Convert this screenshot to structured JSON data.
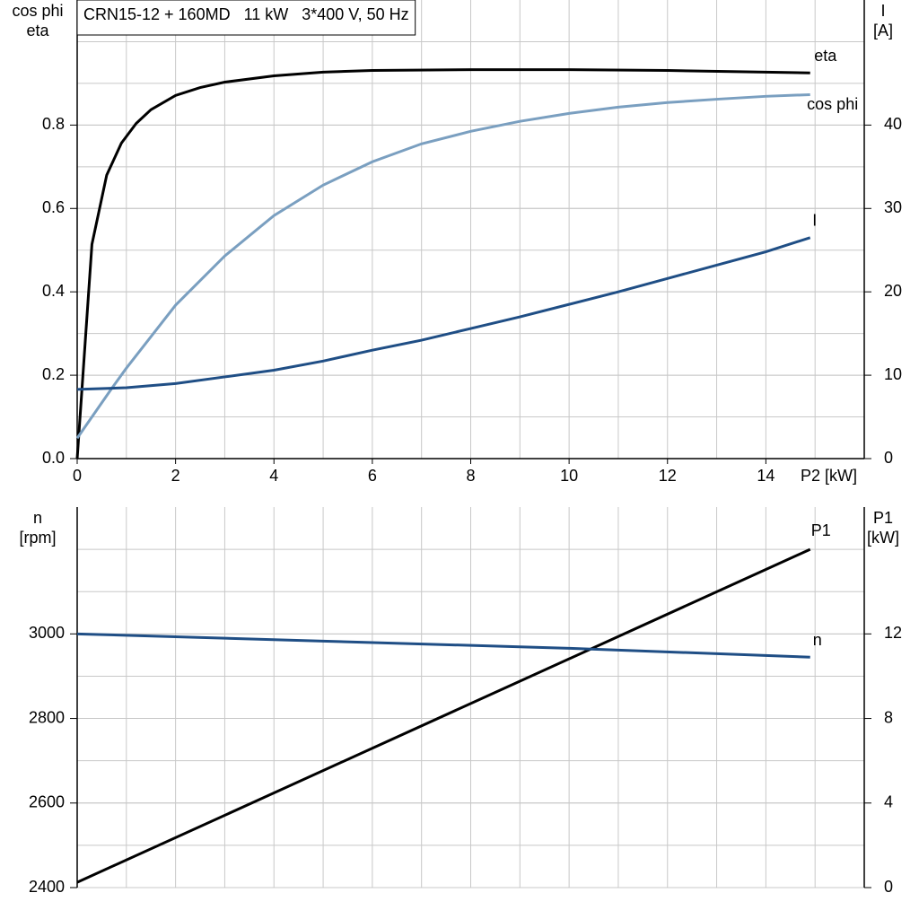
{
  "chart_data": [
    {
      "type": "line",
      "title": "CRN15-12 + 160MD   11 kW   3*400 V, 50 Hz",
      "xlabel": "P2 [kW]",
      "ylabel": [
        "cos phi",
        "eta"
      ],
      "y2label": [
        "I",
        "[A]"
      ],
      "xlim": [
        0,
        16
      ],
      "xticks": [
        0,
        2,
        4,
        6,
        8,
        10,
        12,
        14
      ],
      "ylim": [
        0,
        1.1
      ],
      "yticks": [
        {
          "value": 0,
          "label": "0.0"
        },
        0.2,
        0.4,
        0.6,
        0.8
      ],
      "y2lim": [
        0,
        55
      ],
      "y2ticks": [
        0,
        10,
        20,
        30,
        40
      ],
      "grid": true,
      "series": [
        {
          "name": "eta",
          "color": "#000000",
          "axis": "y",
          "x": [
            0,
            0.3,
            0.6,
            0.9,
            1.2,
            1.5,
            2,
            2.5,
            3,
            4,
            5,
            6,
            8,
            10,
            12,
            14,
            14.9
          ],
          "values": [
            0.0,
            0.514,
            0.68,
            0.757,
            0.804,
            0.837,
            0.871,
            0.89,
            0.903,
            0.918,
            0.927,
            0.931,
            0.933,
            0.933,
            0.931,
            0.927,
            0.925
          ]
        },
        {
          "name": "cos phi",
          "color": "#7a9fc0",
          "axis": "y",
          "x": [
            0,
            0.7,
            1,
            2,
            3,
            4,
            5,
            6,
            7,
            8,
            9,
            10,
            11,
            12,
            13,
            14,
            14.9
          ],
          "values": [
            0.049,
            0.168,
            0.217,
            0.368,
            0.486,
            0.583,
            0.656,
            0.712,
            0.755,
            0.785,
            0.809,
            0.828,
            0.843,
            0.854,
            0.862,
            0.869,
            0.873
          ]
        },
        {
          "name": "I",
          "color": "#1f4e85",
          "axis": "y2",
          "x": [
            0,
            1,
            2,
            3,
            4,
            5,
            6,
            7,
            8,
            9,
            10,
            11,
            12,
            13,
            14,
            14.9
          ],
          "values": [
            8.3,
            8.5,
            9.0,
            9.8,
            10.6,
            11.7,
            13.0,
            14.2,
            15.6,
            17.0,
            18.5,
            20.0,
            21.6,
            23.2,
            24.8,
            26.5
          ]
        }
      ]
    },
    {
      "type": "line",
      "ylabel": [
        "n",
        "[rpm]"
      ],
      "y2label": [
        "P1",
        "[kW]"
      ],
      "xlim": [
        0,
        16
      ],
      "ylim": [
        2400,
        3300
      ],
      "yticks": [
        2400,
        2600,
        2800,
        3000
      ],
      "y2lim": [
        0,
        18
      ],
      "y2ticks": [
        0,
        4,
        8,
        12
      ],
      "grid": true,
      "series": [
        {
          "name": "P1",
          "color": "#000000",
          "axis": "y2",
          "x": [
            0,
            14.9
          ],
          "values": [
            0.25,
            16.0
          ]
        },
        {
          "name": "n",
          "color": "#1f4e85",
          "axis": "y",
          "x": [
            0,
            5,
            10,
            14.9
          ],
          "values": [
            3000,
            2983,
            2966,
            2945
          ]
        }
      ]
    }
  ]
}
